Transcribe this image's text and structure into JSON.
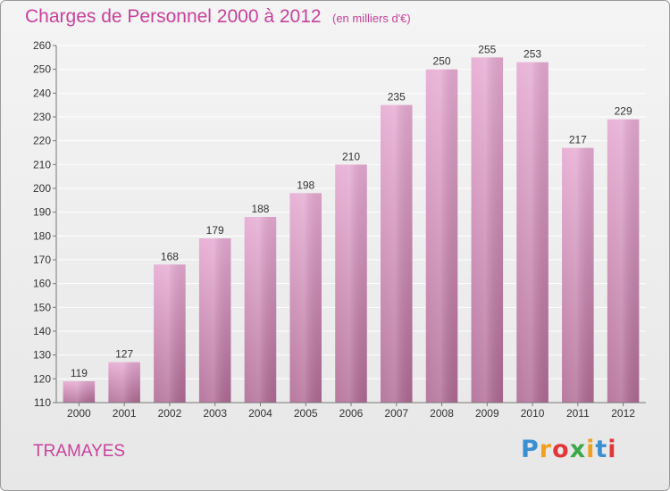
{
  "title": "Charges de Personnel 2000 à 2012",
  "subtitle": "(en milliers d'€)",
  "commune": "TRAMAYES",
  "logo": {
    "letters": [
      "P",
      "r",
      "o",
      "x",
      "i",
      "t",
      "i"
    ],
    "colors": [
      "#3a8fd0",
      "#f0a020",
      "#e03838",
      "#3aa84a",
      "#f0a020",
      "#3a8fd0",
      "#e03838"
    ]
  },
  "colors": {
    "accent": "#c8419a",
    "bar_top": "#e6aad2",
    "bar_bottom": "#b06a94",
    "grid": "#ffffff",
    "tick_text": "#333333"
  },
  "chart_data": {
    "type": "bar",
    "title": "Charges de Personnel 2000 à 2012",
    "subtitle": "(en milliers d'€)",
    "categories": [
      "2000",
      "2001",
      "2002",
      "2003",
      "2004",
      "2005",
      "2006",
      "2007",
      "2008",
      "2009",
      "2010",
      "2011",
      "2012"
    ],
    "values": [
      119,
      127,
      168,
      179,
      188,
      198,
      210,
      235,
      250,
      255,
      253,
      217,
      229
    ],
    "ylim": [
      110,
      260
    ],
    "yticks": [
      110,
      120,
      130,
      140,
      150,
      160,
      170,
      180,
      190,
      200,
      210,
      220,
      230,
      240,
      250,
      260
    ],
    "grid": true,
    "data_labels": true,
    "xlabel": "",
    "ylabel": ""
  }
}
